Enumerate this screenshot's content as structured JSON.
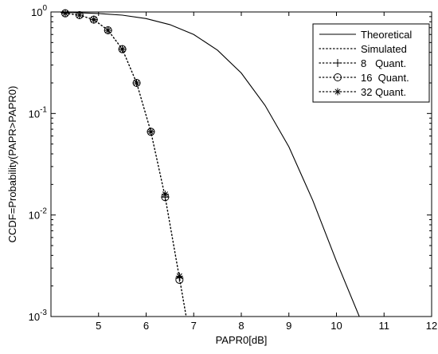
{
  "chart_data": {
    "type": "line",
    "xlabel": "PAPR0[dB]",
    "ylabel": "CCDF=Probability(PAPR>PAPR0)",
    "xlim": [
      4,
      12
    ],
    "ylim": [
      0.001,
      1
    ],
    "yscale": "log",
    "grid": false,
    "legend_position": "top-right",
    "x_ticks": [
      "5",
      "6",
      "7",
      "8",
      "9",
      "10",
      "11",
      "12"
    ],
    "y_ticks": [
      {
        "base": "10",
        "exp": "0",
        "value": 1
      },
      {
        "base": "10",
        "exp": "-1",
        "value": 0.1
      },
      {
        "base": "10",
        "exp": "-2",
        "value": 0.01
      },
      {
        "base": "10",
        "exp": "-3",
        "value": 0.001
      }
    ],
    "series": [
      {
        "name": "Theoretical",
        "style": "solid",
        "x": [
          4.2,
          4.5,
          5.0,
          5.5,
          6.0,
          6.5,
          7.0,
          7.5,
          8.0,
          8.5,
          9.0,
          9.5,
          10.0,
          10.5
        ],
        "y": [
          0.99,
          0.985,
          0.965,
          0.93,
          0.86,
          0.75,
          0.6,
          0.42,
          0.25,
          0.12,
          0.047,
          0.014,
          0.0035,
          0.00095
        ]
      },
      {
        "name": "Simulated",
        "style": "dotted",
        "x": [
          4.3,
          4.6,
          4.9,
          5.2,
          5.5,
          5.8,
          6.1,
          6.4,
          6.7,
          6.85
        ],
        "y": [
          0.97,
          0.93,
          0.84,
          0.66,
          0.43,
          0.2,
          0.066,
          0.015,
          0.0024,
          0.00095
        ]
      },
      {
        "name": "8   Quant.",
        "marker": "plus",
        "x": [
          4.3,
          4.6,
          4.9,
          5.2,
          5.5,
          5.8,
          6.1,
          6.4,
          6.7
        ],
        "y": [
          0.97,
          0.93,
          0.84,
          0.66,
          0.43,
          0.2,
          0.066,
          0.015,
          0.0024
        ]
      },
      {
        "name": "16  Quant.",
        "marker": "circle",
        "x": [
          4.3,
          4.6,
          4.9,
          5.2,
          5.5,
          5.8,
          6.1,
          6.4,
          6.7
        ],
        "y": [
          0.97,
          0.93,
          0.84,
          0.66,
          0.43,
          0.2,
          0.066,
          0.015,
          0.0023
        ]
      },
      {
        "name": "32 Quant.",
        "marker": "star",
        "x": [
          4.3,
          4.6,
          4.9,
          5.2,
          5.5,
          5.8,
          6.1,
          6.4,
          6.7
        ],
        "y": [
          0.97,
          0.93,
          0.84,
          0.66,
          0.43,
          0.2,
          0.066,
          0.016,
          0.0025
        ]
      }
    ]
  }
}
